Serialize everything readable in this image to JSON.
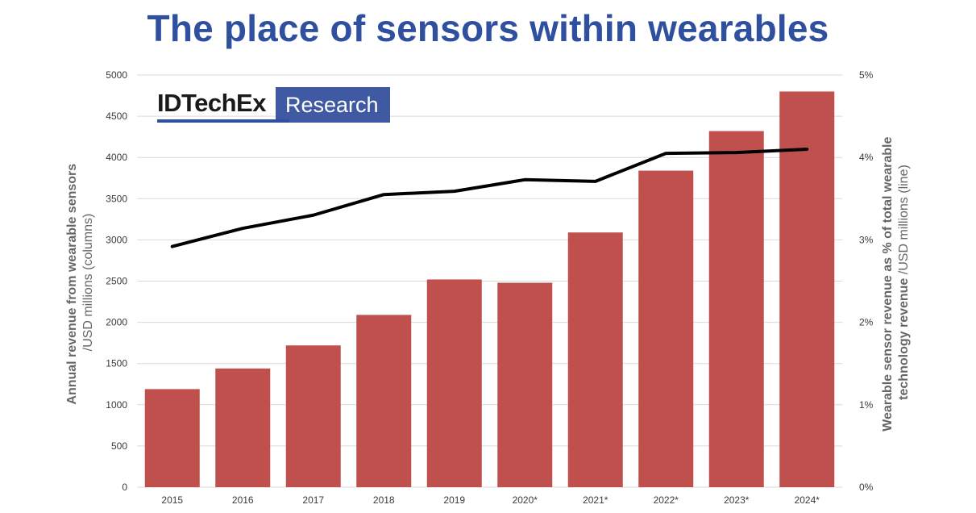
{
  "title": "The place of sensors within wearables",
  "logo": {
    "brand": "IDTechEx",
    "tag": "Research"
  },
  "colors": {
    "title": "#2f4f9f",
    "bar": "#c0504d",
    "line": "#000000",
    "grid": "#d9d9d9"
  },
  "chart_data": {
    "type": "bar",
    "title": "The place of sensors within wearables",
    "categories": [
      "2015",
      "2016",
      "2017",
      "2018",
      "2019",
      "2020*",
      "2021*",
      "2022*",
      "2023*",
      "2024*"
    ],
    "series": [
      {
        "type": "bar",
        "axis": "left",
        "values": [
          1190,
          1440,
          1720,
          2090,
          2520,
          2480,
          3090,
          3840,
          4320,
          4800
        ]
      },
      {
        "type": "line",
        "axis": "right",
        "values": [
          2.92,
          3.14,
          3.3,
          3.55,
          3.59,
          3.73,
          3.71,
          4.05,
          4.06,
          4.1
        ]
      }
    ],
    "ylabel_left": {
      "bold": "Annual revenue from wearable sensors",
      "normal": "/USD millions (columns)"
    },
    "ylabel_right": {
      "bold": "Wearable sensor revenue as % of total wearable technology revenue",
      "normal": "/USD millions (line)",
      "line1": "Wearable sensor revenue as % of total wearable",
      "line2_bold": "technology revenue"
    },
    "ylim_left": [
      0,
      5000
    ],
    "yticks_left": [
      "0",
      "500",
      "1000",
      "1500",
      "2000",
      "2500",
      "3000",
      "3500",
      "4000",
      "4500",
      "5000"
    ],
    "ylim_right": [
      0,
      5
    ],
    "yticks_right": [
      "0%",
      "1%",
      "2%",
      "3%",
      "4%",
      "5%"
    ],
    "grid": true,
    "legend": "none"
  }
}
